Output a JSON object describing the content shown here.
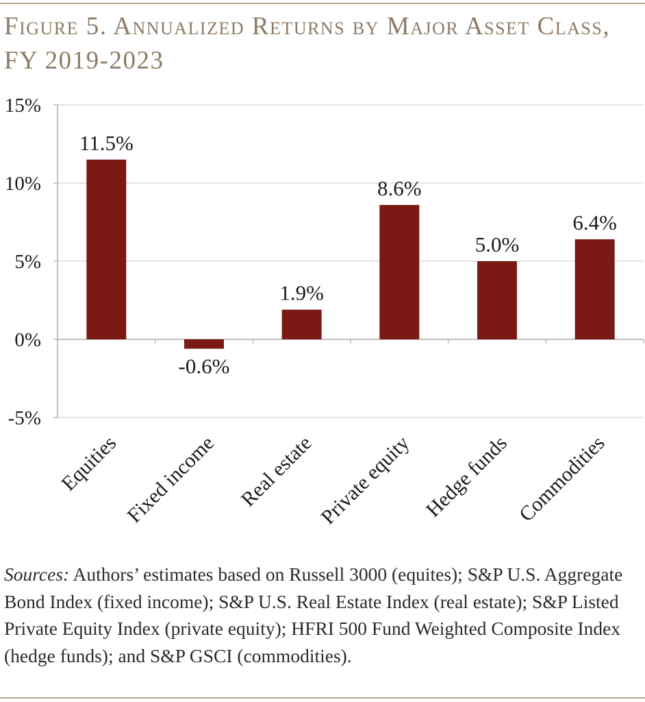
{
  "figure": {
    "title": "Figure 5. Annualized Returns by Major Asset Class, FY 2019-2023"
  },
  "sources": {
    "label": "Sources:",
    "text": " Authors’ estimates based on Russell 3000 (equites); S&P U.S. Aggregate Bond Index (fixed income); S&P U.S. Real Estate Index (real estate); S&P Listed Private Equity Index (private equity); HFRI 500 Fund Weighted Composite Index (hedge funds); and S&P GSCI (commodities)."
  },
  "colors": {
    "bar": "#7b1a14",
    "title": "#8c7a66",
    "grid": "#c8c8c8",
    "axis": "#9a9a9a",
    "text": "#1a1a1a"
  },
  "chart_data": {
    "type": "bar",
    "title": "",
    "xlabel": "",
    "ylabel": "",
    "categories": [
      "Equities",
      "Fixed income",
      "Real estate",
      "Private equity",
      "Hedge funds",
      "Commodities"
    ],
    "series": [
      {
        "values": [
          11.5,
          -0.6,
          1.9,
          8.6,
          5.0,
          6.4
        ],
        "data_labels": [
          "11.5%",
          "-0.6%",
          "1.9%",
          "8.6%",
          "5.0%",
          "6.4%"
        ]
      }
    ],
    "ylim": [
      -5,
      15
    ],
    "yticks": [
      15,
      10,
      5,
      0,
      -5
    ],
    "ytick_labels": [
      "15%",
      "10%",
      "5%",
      "0%",
      "-5%"
    ],
    "grid": true,
    "legend": "none"
  }
}
